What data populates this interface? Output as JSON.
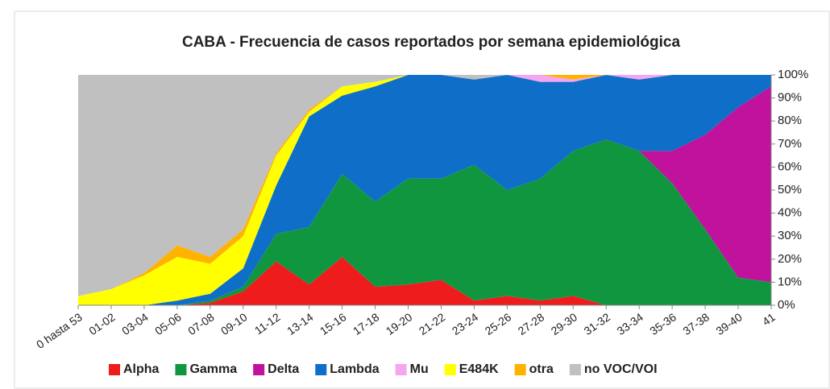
{
  "chart_data": {
    "type": "stacked_area_100",
    "title": "CABA - Frecuencia de casos reportados por semana epidemiológica",
    "categories": [
      "0 hasta 53",
      "01-02",
      "03-04",
      "05-06",
      "07-08",
      "09-10",
      "11-12",
      "13-14",
      "15-16",
      "17-18",
      "19-20",
      "21-22",
      "23-24",
      "25-26",
      "27-28",
      "29-30",
      "31-32",
      "33-34",
      "35-36",
      "37-38",
      "39-40",
      "41"
    ],
    "series": [
      {
        "name": "Alpha",
        "color": "#ee1c1c",
        "values": [
          0,
          0,
          0,
          0,
          1,
          6,
          19,
          9,
          21,
          8,
          9,
          11,
          2,
          4,
          2,
          4,
          0,
          0,
          0,
          0,
          0,
          0
        ]
      },
      {
        "name": "Gamma",
        "color": "#119640",
        "values": [
          0,
          0,
          0,
          0,
          1,
          2,
          12,
          25,
          36,
          37,
          46,
          44,
          59,
          46,
          53,
          63,
          72,
          67,
          53,
          33,
          12,
          10
        ]
      },
      {
        "name": "Delta",
        "color": "#c0129c",
        "values": [
          0,
          0,
          0,
          0,
          0,
          0,
          0,
          0,
          0,
          0,
          0,
          0,
          0,
          0,
          0,
          0,
          0,
          0,
          14,
          41,
          74,
          85
        ]
      },
      {
        "name": "Lambda",
        "color": "#0f6ec8",
        "values": [
          0,
          0,
          0,
          2,
          3,
          8,
          21,
          48,
          34,
          50,
          45,
          45,
          37,
          50,
          42,
          30,
          28,
          31,
          33,
          26,
          14,
          5
        ]
      },
      {
        "name": "Mu",
        "color": "#f5a6ef",
        "values": [
          0,
          0,
          0,
          0,
          0,
          0,
          0,
          0,
          0,
          0,
          0,
          0,
          0,
          0,
          3,
          1,
          0,
          2,
          0,
          0,
          0,
          0
        ]
      },
      {
        "name": "E484K",
        "color": "#ffff00",
        "values": [
          4,
          7,
          13,
          19,
          13,
          14,
          13,
          2,
          4,
          2,
          0,
          0,
          0,
          0,
          0,
          0,
          0,
          0,
          0,
          0,
          0,
          0
        ]
      },
      {
        "name": "otra",
        "color": "#ffb300",
        "values": [
          0,
          0,
          1,
          5,
          3,
          3,
          1,
          1,
          0,
          0,
          0,
          0,
          0,
          0,
          0,
          2,
          0,
          0,
          0,
          0,
          0,
          0
        ]
      },
      {
        "name": "no VOC/VOI",
        "color": "#c0c0c0",
        "values": [
          96,
          93,
          86,
          74,
          79,
          67,
          34,
          15,
          5,
          3,
          0,
          0,
          2,
          0,
          0,
          0,
          0,
          0,
          0,
          0,
          0,
          0
        ]
      }
    ],
    "ylim": [
      0,
      100
    ],
    "yticks": [
      {
        "value": 0,
        "label": "0%"
      },
      {
        "value": 10,
        "label": "10%"
      },
      {
        "value": 20,
        "label": "20%"
      },
      {
        "value": 30,
        "label": "30%"
      },
      {
        "value": 40,
        "label": "40%"
      },
      {
        "value": 50,
        "label": "50%"
      },
      {
        "value": 60,
        "label": "60%"
      },
      {
        "value": 70,
        "label": "70%"
      },
      {
        "value": 80,
        "label": "80%"
      },
      {
        "value": 90,
        "label": "90%"
      },
      {
        "value": 100,
        "label": "100%"
      }
    ],
    "legend": "bottom"
  }
}
